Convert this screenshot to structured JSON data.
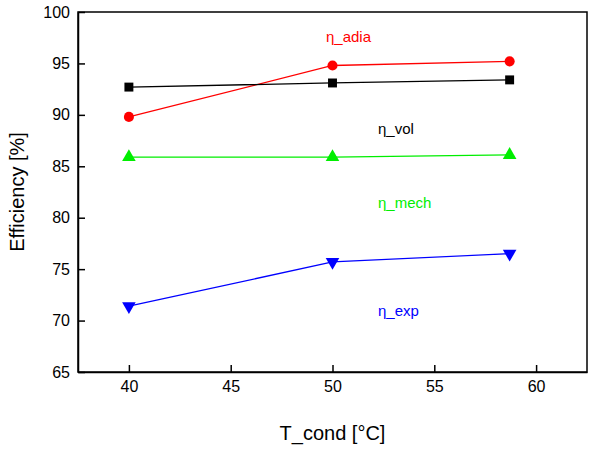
{
  "chart_data": {
    "type": "line",
    "x_label": "T_cond [°C]",
    "y_label": "Efficiency [%]",
    "x": [
      40,
      50,
      58.7
    ],
    "xlim": [
      37.5,
      62.5
    ],
    "xticks": [
      40,
      45,
      50,
      55,
      60
    ],
    "ylim": [
      65,
      100
    ],
    "yticks": [
      65,
      70,
      75,
      80,
      85,
      90,
      95,
      100
    ],
    "series": [
      {
        "name": "η_adia",
        "color": "#ff0000",
        "marker": "circle",
        "values": [
          89.8,
          94.8,
          95.2
        ]
      },
      {
        "name": "η_vol",
        "color": "#000000",
        "marker": "square",
        "values": [
          92.7,
          93.1,
          93.4
        ]
      },
      {
        "name": "η_mech",
        "color": "#00ee00",
        "marker": "triangle-up",
        "values": [
          85.9,
          85.9,
          86.1
        ]
      },
      {
        "name": "η_exp",
        "color": "#0000ff",
        "marker": "triangle-down",
        "values": [
          71.4,
          75.7,
          76.5
        ]
      }
    ]
  }
}
